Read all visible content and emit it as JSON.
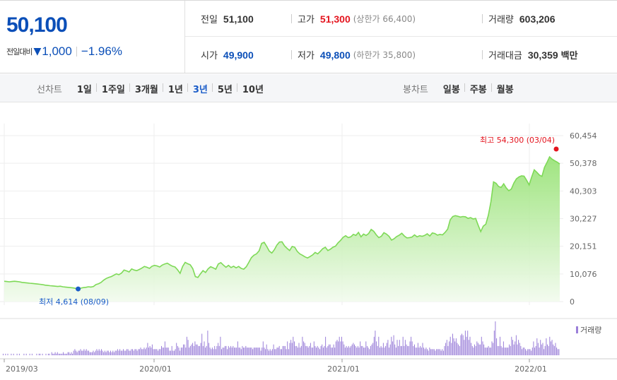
{
  "quote": {
    "price": "50,100",
    "change_label": "전일대비",
    "change_arrow": "▼",
    "change_amount": "1,000",
    "change_pct": "−1.96%",
    "prev_close_label": "전일",
    "prev_close": "51,100",
    "high_label": "고가",
    "high": "51,300",
    "upper_limit": "(상한가 66,400)",
    "volume_label": "거래량",
    "volume": "603,206",
    "open_label": "시가",
    "open": "49,900",
    "low_label": "저가",
    "low": "49,800",
    "lower_limit": "(하한가 35,800)",
    "value_label": "거래대금",
    "value": "30,359",
    "value_unit": "백만"
  },
  "tabs": {
    "line_label": "선차트",
    "line_items": [
      "1일",
      "1주일",
      "3개월",
      "1년",
      "3년",
      "5년",
      "10년"
    ],
    "line_active": "3년",
    "candle_label": "봉차트",
    "candle_items": [
      "일봉",
      "주봉",
      "월봉"
    ]
  },
  "colors": {
    "price_blue": "#0b4fb8",
    "up_red": "#e4141e",
    "line_green": "#7ed957",
    "volume_purple": "#9b7fd9",
    "low_marker": "#1a5cc8",
    "high_marker": "#e4141e"
  },
  "chart_data": {
    "type": "area",
    "y_ticks": [
      "60,454",
      "50,378",
      "40,303",
      "30,227",
      "20,151",
      "10,076",
      "0"
    ],
    "ylim": [
      0,
      60454
    ],
    "x_ticks": [
      "2019/03",
      "2020/01",
      "2021/01",
      "2022/01"
    ],
    "max_label": "최고 54,300 (03/04)",
    "min_label": "최저 4,614 (08/09)",
    "volume_legend": "거래량",
    "series": [
      {
        "name": "",
        "values": [
          7400,
          7300,
          7200,
          7300,
          7400,
          7300,
          7200,
          7000,
          6900,
          6800,
          6700,
          6600,
          6500,
          6400,
          6300,
          6200,
          6000,
          5900,
          5800,
          5700,
          5600,
          5500,
          5600,
          5400,
          5300,
          5200,
          5100,
          5000,
          4800,
          4614,
          4900,
          5100,
          5200,
          5400,
          5300,
          5500,
          6200,
          6500,
          7000,
          7800,
          8400,
          8800,
          9100,
          9600,
          10100,
          9800,
          10400,
          11500,
          11200,
          10800,
          11900,
          11500,
          11300,
          11700,
          12200,
          12800,
          12500,
          12100,
          12900,
          13200,
          13000,
          12600,
          13300,
          13700,
          14000,
          13400,
          12900,
          12600,
          11600,
          10300,
          12800,
          14300,
          13800,
          13400,
          12000,
          9100,
          8800,
          10100,
          11300,
          10600,
          11900,
          12700,
          12300,
          11800,
          13700,
          14200,
          13300,
          12500,
          13200,
          12400,
          12900,
          12300,
          12800,
          12100,
          11800,
          12700,
          14300,
          16000,
          16900,
          17400,
          18500,
          21200,
          21600,
          20100,
          18400,
          17700,
          18900,
          20600,
          21700,
          21800,
          20300,
          19400,
          18600,
          20100,
          19800,
          18300,
          17400,
          16900,
          16300,
          15900,
          16400,
          17000,
          17900,
          17400,
          18300,
          19300,
          19800,
          18600,
          19100,
          19800,
          20200,
          21400,
          22300,
          23400,
          24000,
          23300,
          23600,
          24500,
          24100,
          25200,
          23600,
          24600,
          24100,
          24800,
          26300,
          25600,
          24300,
          23300,
          23800,
          25100,
          24600,
          23800,
          22400,
          22900,
          23700,
          24200,
          24900,
          23900,
          23200,
          23300,
          23500,
          24300,
          23600,
          24000,
          23800,
          24100,
          24700,
          23900,
          25000,
          24800,
          24200,
          24500,
          24300,
          25200,
          26400,
          29800,
          31000,
          31300,
          31100,
          30800,
          31000,
          30900,
          30300,
          30600,
          30100,
          30300,
          27800,
          25500,
          27500,
          28200,
          31500,
          36500,
          43600,
          43100,
          41900,
          41600,
          42900,
          41400,
          40400,
          41000,
          43200,
          44700,
          45400,
          45800,
          45700,
          44200,
          42500,
          45400,
          48000,
          47100,
          46100,
          45600,
          48900,
          50700,
          52700,
          51900,
          51300,
          50800,
          50100
        ]
      }
    ],
    "volume": [
      1,
      0,
      1,
      0,
      1,
      0,
      0,
      1,
      0,
      1,
      0,
      0,
      1,
      0,
      1,
      0,
      0,
      0,
      1,
      0,
      1,
      0,
      0,
      1,
      0,
      1,
      0,
      0,
      0,
      1,
      0,
      1,
      1,
      0,
      1,
      0,
      0,
      1,
      0,
      1,
      1,
      0,
      2,
      1,
      1,
      2,
      1,
      2,
      1,
      1,
      1,
      1,
      2,
      1,
      1,
      1,
      2,
      2,
      1,
      2,
      1,
      3,
      4,
      3,
      2,
      3,
      3,
      4,
      3,
      3,
      4,
      3,
      4,
      3,
      3,
      2,
      2,
      2,
      3,
      2,
      3,
      4,
      3,
      4,
      3,
      4,
      3,
      2,
      3,
      2,
      3,
      3,
      2,
      3,
      2,
      3,
      2,
      3,
      3,
      4,
      3,
      4,
      3,
      3,
      4,
      3,
      3,
      4,
      4,
      3,
      3,
      4,
      4,
      3,
      4,
      4,
      3,
      4,
      4,
      5,
      4,
      4,
      5,
      4,
      5,
      8,
      5,
      6,
      5,
      7,
      4,
      4,
      4,
      4,
      3,
      4,
      4,
      6,
      5,
      5,
      9,
      5,
      5,
      5,
      3,
      3,
      6,
      3,
      3,
      4,
      8,
      6,
      5,
      3,
      5,
      5,
      7,
      7,
      5,
      12,
      10,
      5,
      6,
      7,
      8,
      6,
      9,
      7,
      7,
      6,
      6,
      8,
      14,
      6,
      9,
      5,
      6,
      16,
      8,
      5,
      4,
      5,
      4,
      6,
      4,
      6,
      8,
      6,
      12,
      4,
      5,
      5,
      6,
      6,
      4,
      6,
      5,
      6,
      5,
      6,
      5,
      5,
      5,
      9,
      5,
      5,
      4,
      6,
      5,
      5,
      6,
      5,
      5,
      5,
      5,
      5,
      4,
      5,
      5,
      5,
      5,
      5,
      5,
      3,
      5,
      9,
      5,
      4,
      7,
      4,
      3,
      4,
      3,
      4,
      7,
      4,
      4,
      5,
      5,
      6,
      4,
      4,
      6,
      6,
      6,
      4,
      9,
      4,
      8,
      10,
      8,
      12,
      9,
      6,
      6,
      5,
      8,
      5,
      6,
      12,
      9,
      8,
      6,
      6,
      5,
      6,
      8,
      5,
      5,
      9,
      6,
      5,
      6,
      5,
      4,
      6,
      7,
      5,
      6,
      12,
      5,
      6,
      7,
      7,
      5,
      5,
      7,
      5,
      9,
      10,
      9,
      12,
      9,
      12,
      9,
      7,
      5,
      6,
      5,
      6,
      5,
      6,
      7,
      8,
      7,
      6,
      5,
      6,
      5,
      9,
      6,
      6,
      5,
      5,
      9,
      6,
      5,
      4,
      6,
      7,
      8,
      12,
      16,
      9,
      6,
      12,
      5,
      6,
      5,
      8,
      5,
      6,
      8,
      10,
      5,
      7,
      12,
      9,
      13,
      7,
      5,
      10,
      6,
      10,
      6,
      6,
      12,
      6,
      10,
      7,
      6,
      6,
      9,
      12,
      9,
      6,
      7,
      5,
      5,
      8,
      5,
      6,
      5,
      8,
      5,
      4,
      5,
      4,
      3,
      5,
      4,
      4,
      4,
      4,
      3,
      4,
      4,
      4,
      4,
      3,
      4,
      3,
      6,
      8,
      10,
      6,
      9,
      12,
      8,
      14,
      11,
      9,
      11,
      8,
      7,
      6,
      13,
      14,
      13,
      10,
      16,
      12,
      16,
      10,
      12,
      8,
      6,
      5,
      7,
      6,
      9,
      8,
      7,
      7,
      12,
      9,
      7,
      5,
      5,
      5,
      6,
      5,
      5,
      9,
      8,
      16,
      22,
      11,
      6,
      6,
      12,
      6,
      5,
      9,
      5,
      5,
      5,
      5,
      7,
      6,
      12,
      10,
      7,
      9,
      13,
      7,
      10,
      8,
      6,
      4,
      5,
      5,
      4,
      3,
      4,
      4,
      4,
      3,
      5,
      9,
      5,
      6,
      11,
      8,
      5,
      10,
      7,
      8,
      4,
      6,
      11,
      7,
      6,
      12,
      9,
      10,
      7,
      6,
      8,
      5,
      4,
      4
    ]
  }
}
